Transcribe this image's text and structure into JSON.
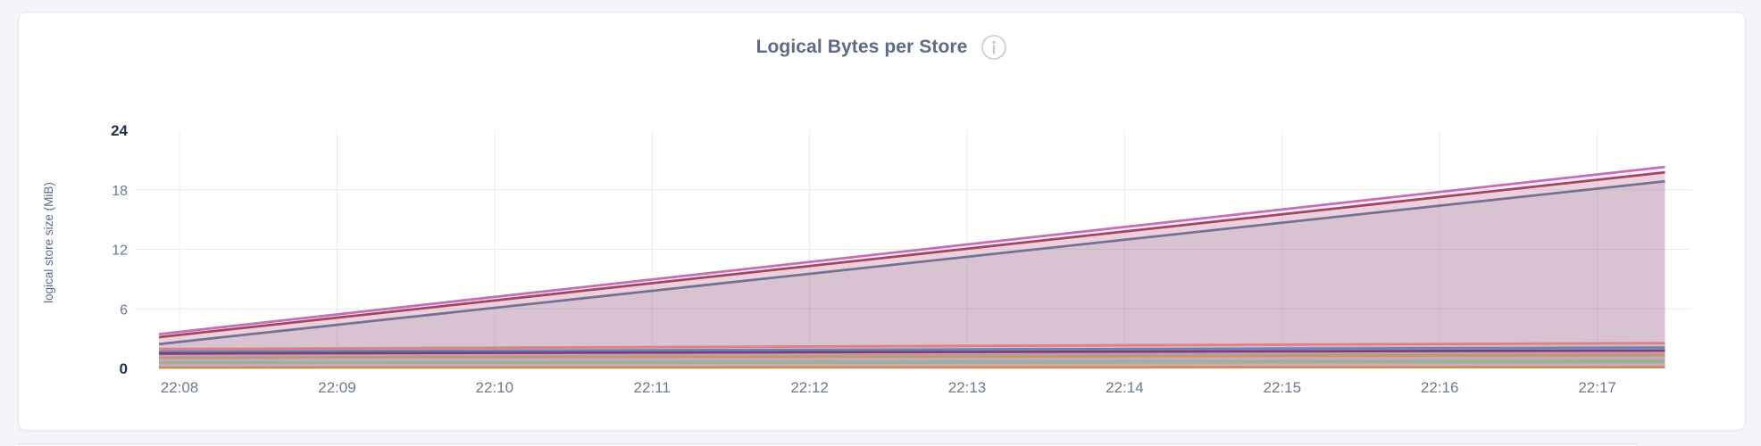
{
  "card": {
    "title": "Logical Bytes per Store",
    "info_icon": "info-icon"
  },
  "colors": {
    "page_bg": "#f4f5f9",
    "card_bg": "#ffffff",
    "card_border": "#e6e7eb",
    "title_text": "#5c6a86",
    "axis_label_text": "#5f6c87",
    "tick_text": "#6b7a94",
    "tick_text_emphasis": "#1c3150",
    "gridline": "#ececef",
    "info_icon_stroke": "#c7c9cf",
    "divider": "#dfe1e6"
  },
  "chart_data": {
    "type": "area",
    "title": "Logical Bytes per Store",
    "xlabel": "",
    "ylabel": "logical store size (MiB)",
    "ylim": [
      0,
      24
    ],
    "y_ticks": [
      0,
      6,
      12,
      18,
      24
    ],
    "y_ticks_emphasized": [
      0,
      24
    ],
    "x_ticks": [
      "22:08",
      "22:09",
      "22:10",
      "22:11",
      "22:12",
      "22:13",
      "22:14",
      "22:15",
      "22:16",
      "22:17"
    ],
    "x_tick_minutes": [
      0,
      1,
      2,
      3,
      4,
      5,
      6,
      7,
      8,
      9
    ],
    "x_endpoints_minutes": [
      -0.13,
      9.43
    ],
    "grid": true,
    "legend_position": "none",
    "fill_opacity": 0.15,
    "line_width": 2.75,
    "note": "Each series rises linearly; values given at the two data endpoints (just before 22:08 and just after 22:17).",
    "series": [
      {
        "name": "series-1-orchid",
        "color": "#c36fb5",
        "values": [
          3.45,
          20.3
        ]
      },
      {
        "name": "series-2-maroon",
        "color": "#a64460",
        "values": [
          3.15,
          19.75
        ]
      },
      {
        "name": "series-3-slate",
        "color": "#767093",
        "values": [
          2.45,
          18.85
        ]
      },
      {
        "name": "series-4-salmon",
        "color": "#dd8181",
        "values": [
          1.95,
          2.55
        ]
      },
      {
        "name": "series-5-blue",
        "color": "#6a82bd",
        "values": [
          1.7,
          2.1
        ]
      },
      {
        "name": "series-6-plum",
        "color": "#7e3f70",
        "values": [
          1.5,
          1.8
        ]
      },
      {
        "name": "series-7-gold",
        "color": "#bf9a62",
        "values": [
          1.05,
          1.35
        ]
      },
      {
        "name": "series-8-mauve",
        "color": "#c9a6c3",
        "values": [
          0.85,
          1.05
        ]
      },
      {
        "name": "series-9-green",
        "color": "#8cba90",
        "values": [
          0.55,
          0.7
        ]
      },
      {
        "name": "series-10-rose",
        "color": "#d4a9b8",
        "values": [
          0.3,
          0.38
        ]
      },
      {
        "name": "series-11-bronze",
        "color": "#c09257",
        "values": [
          0.08,
          0.12
        ]
      }
    ]
  }
}
